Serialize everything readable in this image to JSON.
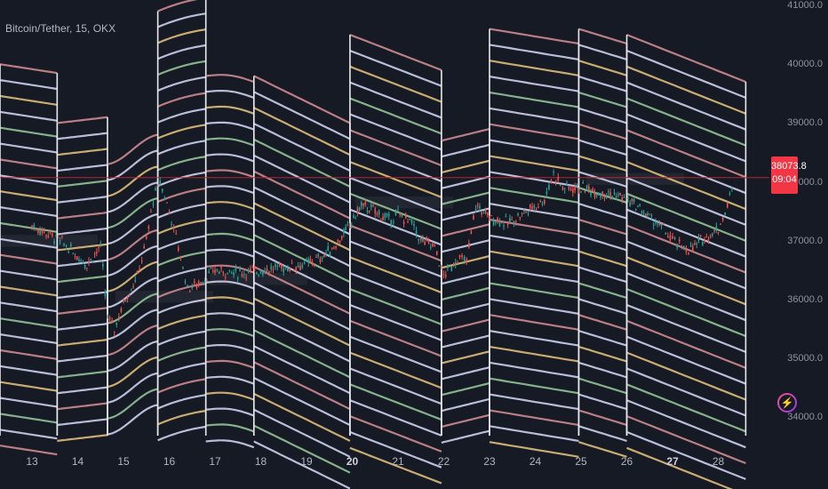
{
  "chart_data": {
    "type": "line",
    "title": "Bitcoin/Tether, 15, OKX",
    "ylim": [
      33600,
      41050
    ],
    "y_ticks": [
      "41000.0",
      "40000.0",
      "39000.0",
      "38000.0",
      "37000.0",
      "36000.0",
      "35000.0",
      "34000.0"
    ],
    "x_ticks": [
      {
        "label": "13",
        "bold": false
      },
      {
        "label": "14",
        "bold": false
      },
      {
        "label": "15",
        "bold": false
      },
      {
        "label": "16",
        "bold": false
      },
      {
        "label": "17",
        "bold": false
      },
      {
        "label": "18",
        "bold": false
      },
      {
        "label": "19",
        "bold": false
      },
      {
        "label": "20",
        "bold": true
      },
      {
        "label": "21",
        "bold": false
      },
      {
        "label": "22",
        "bold": false
      },
      {
        "label": "23",
        "bold": false
      },
      {
        "label": "24",
        "bold": false
      },
      {
        "label": "25",
        "bold": false
      },
      {
        "label": "26",
        "bold": false
      },
      {
        "label": "27",
        "bold": true
      },
      {
        "label": "28",
        "bold": false
      }
    ],
    "current_price": {
      "value": 38073.8,
      "label": "38073.8",
      "countdown": "09:04"
    },
    "price_path": [
      [
        13.0,
        37250
      ],
      [
        13.4,
        37100
      ],
      [
        13.7,
        36950
      ],
      [
        13.9,
        36800
      ],
      [
        14.2,
        36600
      ],
      [
        14.5,
        36900
      ],
      [
        14.65,
        35700
      ],
      [
        14.8,
        35500
      ],
      [
        15.0,
        35950
      ],
      [
        15.3,
        36400
      ],
      [
        15.5,
        37000
      ],
      [
        15.65,
        37700
      ],
      [
        15.8,
        38000
      ],
      [
        16.0,
        37500
      ],
      [
        16.2,
        36900
      ],
      [
        16.4,
        36200
      ],
      [
        16.6,
        36250
      ],
      [
        17.0,
        36500
      ],
      [
        17.5,
        36450
      ],
      [
        18.0,
        36500
      ],
      [
        18.5,
        36550
      ],
      [
        19.0,
        36600
      ],
      [
        19.3,
        36700
      ],
      [
        19.6,
        36900
      ],
      [
        19.9,
        37200
      ],
      [
        20.2,
        37600
      ],
      [
        20.5,
        37500
      ],
      [
        20.8,
        37350
      ],
      [
        21.0,
        37450
      ],
      [
        21.3,
        37300
      ],
      [
        21.5,
        37000
      ],
      [
        21.8,
        36900
      ],
      [
        22.0,
        36400
      ],
      [
        22.3,
        36700
      ],
      [
        22.5,
        36650
      ],
      [
        22.7,
        37600
      ],
      [
        23.0,
        37400
      ],
      [
        23.4,
        37300
      ],
      [
        23.8,
        37500
      ],
      [
        24.2,
        37700
      ],
      [
        24.4,
        38150
      ],
      [
        24.6,
        37900
      ],
      [
        25.0,
        37900
      ],
      [
        25.3,
        37850
      ],
      [
        25.6,
        37800
      ],
      [
        25.9,
        37750
      ],
      [
        26.2,
        37600
      ],
      [
        26.5,
        37400
      ],
      [
        26.8,
        37200
      ],
      [
        27.0,
        37000
      ],
      [
        27.2,
        36900
      ],
      [
        27.4,
        36850
      ],
      [
        27.7,
        37050
      ],
      [
        28.0,
        37200
      ],
      [
        28.2,
        37600
      ],
      [
        28.35,
        38073.8
      ]
    ],
    "band_segments": [
      {
        "start": 12.0,
        "end": 13.55,
        "y_start": 40000,
        "y_end": 39850,
        "curve": "flat"
      },
      {
        "start": 13.55,
        "end": 14.65,
        "y_start": 39000,
        "y_end": 39100,
        "curve": "flat"
      },
      {
        "start": 14.65,
        "end": 15.75,
        "y_start": 38300,
        "y_end": 38600,
        "curve": "s_up"
      },
      {
        "start": 15.75,
        "end": 16.8,
        "y_start": 40900,
        "y_end": 41250,
        "curve": "convex"
      },
      {
        "start": 16.8,
        "end": 17.85,
        "y_start": 39800,
        "y_end": 39700,
        "curve": "dome"
      },
      {
        "start": 17.85,
        "end": 19.95,
        "y_start": 39800,
        "y_end": 39000,
        "curve": "linear"
      },
      {
        "start": 19.95,
        "end": 21.95,
        "y_start": 40500,
        "y_end": 39900,
        "curve": "linear"
      },
      {
        "start": 21.95,
        "end": 23.0,
        "y_start": 38700,
        "y_end": 38900,
        "curve": "flat"
      },
      {
        "start": 23.0,
        "end": 24.95,
        "y_start": 40600,
        "y_end": 40350,
        "curve": "linear"
      },
      {
        "start": 24.95,
        "end": 26.0,
        "y_start": 40600,
        "y_end": 40350,
        "curve": "linear"
      },
      {
        "start": 26.0,
        "end": 28.6,
        "y_start": 40500,
        "y_end": 39700,
        "curve": "linear"
      }
    ],
    "band_colors": [
      "#c9888c",
      "#c8cbe6",
      "#d9b977",
      "#c8cbe6",
      "#8fbf93",
      "#c8cbe6",
      "#c9888c",
      "#c8cbe6",
      "#d9b977",
      "#c8cbe6",
      "#8fbf93",
      "#c8cbe6"
    ],
    "band_count": 28,
    "band_spacing": 270
  },
  "colors": {
    "background": "#161a25",
    "up": "#26a69a",
    "down": "#ef5350",
    "price_line": "#b22833",
    "highlight": "#2e323d"
  },
  "icons": {
    "alert": "lightning-alert-icon"
  }
}
